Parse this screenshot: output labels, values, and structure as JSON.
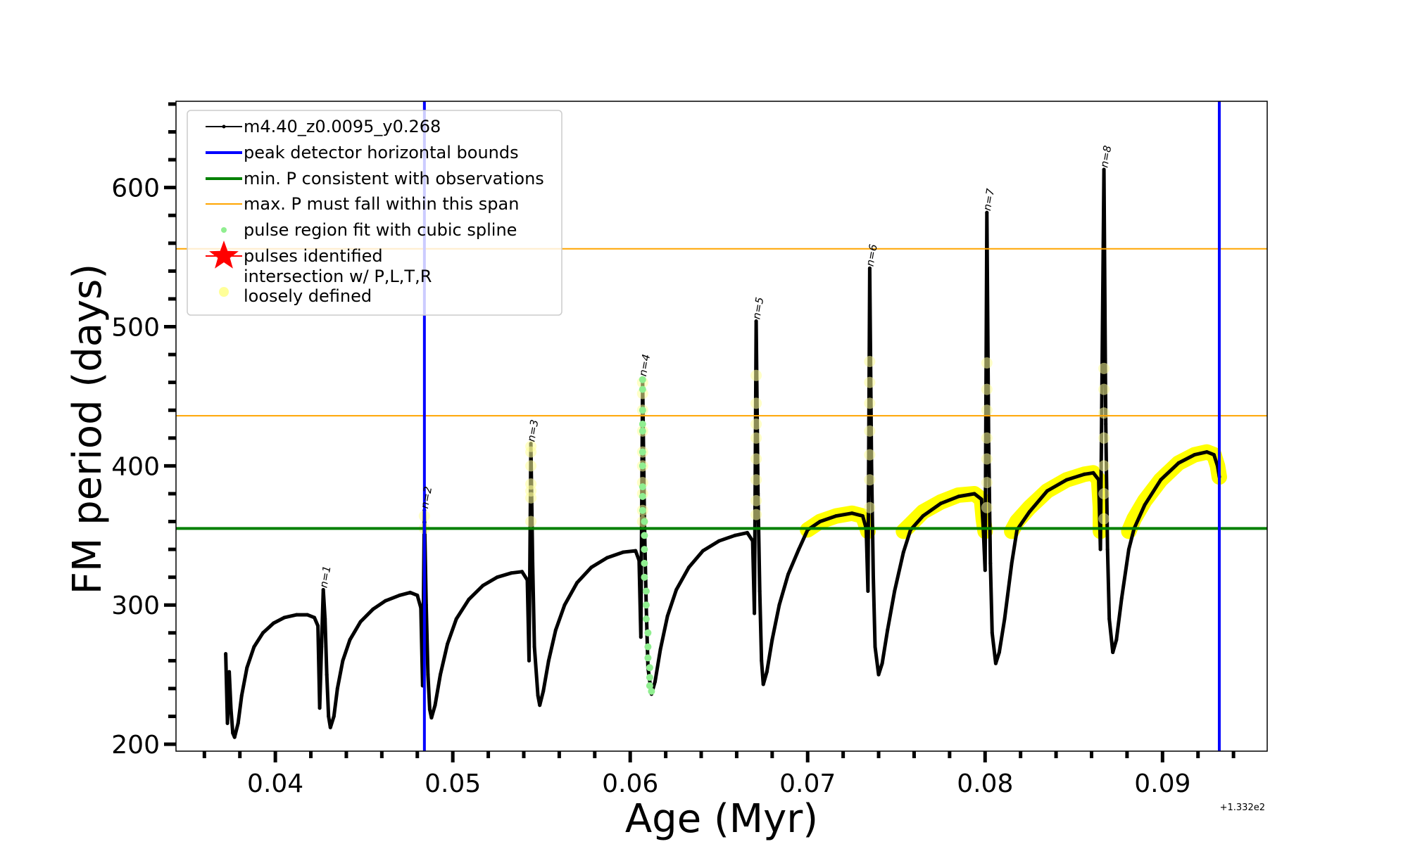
{
  "chart_data": {
    "type": "line",
    "xlabel": "Age (Myr)",
    "ylabel": "FM period (days)",
    "x_offset_label": "+1.332e2",
    "xlim": [
      0.0344,
      0.0959
    ],
    "ylim": [
      195,
      662
    ],
    "x_ticks": [
      0.04,
      0.05,
      0.06,
      0.07,
      0.08,
      0.09
    ],
    "x_tick_labels": [
      "0.04",
      "0.05",
      "0.06",
      "0.07",
      "0.08",
      "0.09"
    ],
    "x_minor_step": 0.002,
    "y_ticks": [
      200,
      300,
      400,
      500,
      600
    ],
    "y_tick_labels": [
      "200",
      "300",
      "400",
      "500",
      "600"
    ],
    "y_minor_step": 20,
    "legend_position": "upper-left",
    "legend": [
      {
        "label": "m4.40_z0.0095_y0.268",
        "marker": "line-dot",
        "color": "#000000"
      },
      {
        "label": "peak detector horizontal bounds",
        "marker": "thick-line",
        "color": "#0000ff"
      },
      {
        "label": "min. P consistent with observations",
        "marker": "thick-line",
        "color": "#008000"
      },
      {
        "label": "max. P must fall within this span",
        "marker": "thin-line",
        "color": "#ffa500"
      },
      {
        "label": "pulse region fit with cubic spline",
        "marker": "dot",
        "color": "#90ee90"
      },
      {
        "label": "pulses identified",
        "marker": "star",
        "color": "#ff0000"
      },
      {
        "label_lines": [
          "intersection w/ P,L,T,R",
          "loosely defined"
        ],
        "marker": "dot",
        "color": "#ffff99"
      }
    ],
    "vertical_lines": [
      {
        "name": "peak-detector-left-bound",
        "x": 0.0484,
        "color": "#0000ff"
      },
      {
        "name": "peak-detector-right-bound",
        "x": 0.0932,
        "color": "#0000ff"
      }
    ],
    "horizontal_lines": [
      {
        "name": "min-period-line",
        "y": 355,
        "color": "#008000"
      },
      {
        "name": "max-period-lower-line",
        "y": 436,
        "color": "#ffa500"
      },
      {
        "name": "max-period-upper-line",
        "y": 556,
        "color": "#ffa500"
      }
    ],
    "series": [
      {
        "name": "m4.40_z0.0095_y0.268",
        "color": "#000000",
        "points": [
          [
            0.0372,
            265
          ],
          [
            0.0373,
            215
          ],
          [
            0.0374,
            252
          ],
          [
            0.0375,
            225
          ],
          [
            0.0376,
            208
          ],
          [
            0.0377,
            205
          ],
          [
            0.0379,
            215
          ],
          [
            0.0381,
            235
          ],
          [
            0.0384,
            255
          ],
          [
            0.0388,
            270
          ],
          [
            0.0393,
            280
          ],
          [
            0.0399,
            287
          ],
          [
            0.0405,
            291
          ],
          [
            0.0412,
            293
          ],
          [
            0.0418,
            293
          ],
          [
            0.0422,
            291
          ],
          [
            0.0424,
            285
          ],
          [
            0.0425,
            226
          ],
          [
            0.0426,
            270
          ],
          [
            0.0427,
            311
          ],
          [
            0.0428,
            290
          ],
          [
            0.0429,
            250
          ],
          [
            0.043,
            220
          ],
          [
            0.0431,
            212
          ],
          [
            0.0433,
            220
          ],
          [
            0.0435,
            240
          ],
          [
            0.0438,
            260
          ],
          [
            0.0442,
            275
          ],
          [
            0.0448,
            288
          ],
          [
            0.0455,
            297
          ],
          [
            0.0462,
            303
          ],
          [
            0.047,
            307
          ],
          [
            0.0476,
            309
          ],
          [
            0.048,
            307
          ],
          [
            0.0482,
            298
          ],
          [
            0.0483,
            242
          ],
          [
            0.0484,
            368
          ],
          [
            0.0485,
            300
          ],
          [
            0.0486,
            250
          ],
          [
            0.0487,
            225
          ],
          [
            0.0488,
            219
          ],
          [
            0.049,
            228
          ],
          [
            0.0493,
            250
          ],
          [
            0.0497,
            272
          ],
          [
            0.0502,
            290
          ],
          [
            0.0509,
            304
          ],
          [
            0.0517,
            314
          ],
          [
            0.0525,
            320
          ],
          [
            0.0533,
            323
          ],
          [
            0.0539,
            324
          ],
          [
            0.0542,
            318
          ],
          [
            0.0543,
            260
          ],
          [
            0.0544,
            416
          ],
          [
            0.0545,
            330
          ],
          [
            0.0546,
            270
          ],
          [
            0.0548,
            235
          ],
          [
            0.0549,
            228
          ],
          [
            0.0551,
            238
          ],
          [
            0.0554,
            260
          ],
          [
            0.0558,
            282
          ],
          [
            0.0563,
            300
          ],
          [
            0.057,
            316
          ],
          [
            0.0578,
            327
          ],
          [
            0.0587,
            334
          ],
          [
            0.0596,
            338
          ],
          [
            0.0603,
            339
          ],
          [
            0.0605,
            332
          ],
          [
            0.0606,
            277
          ],
          [
            0.0607,
            463
          ],
          [
            0.0608,
            360
          ],
          [
            0.0609,
            300
          ],
          [
            0.061,
            255
          ],
          [
            0.0612,
            236
          ],
          [
            0.0614,
            245
          ],
          [
            0.0617,
            268
          ],
          [
            0.0621,
            292
          ],
          [
            0.0626,
            311
          ],
          [
            0.0633,
            327
          ],
          [
            0.0641,
            339
          ],
          [
            0.065,
            346
          ],
          [
            0.0659,
            350
          ],
          [
            0.0666,
            352
          ],
          [
            0.0669,
            346
          ],
          [
            0.067,
            294
          ],
          [
            0.0671,
            504
          ],
          [
            0.0672,
            380
          ],
          [
            0.0673,
            310
          ],
          [
            0.0674,
            260
          ],
          [
            0.0675,
            243
          ],
          [
            0.0677,
            252
          ],
          [
            0.068,
            275
          ],
          [
            0.0684,
            300
          ],
          [
            0.0689,
            322
          ],
          [
            0.0695,
            340
          ],
          [
            0.07,
            354
          ],
          [
            0.0707,
            360
          ],
          [
            0.0716,
            364
          ],
          [
            0.0725,
            366
          ],
          [
            0.0731,
            364
          ],
          [
            0.0733,
            355
          ],
          [
            0.0734,
            310
          ],
          [
            0.0735,
            542
          ],
          [
            0.0736,
            400
          ],
          [
            0.0737,
            320
          ],
          [
            0.0738,
            270
          ],
          [
            0.074,
            250
          ],
          [
            0.0742,
            258
          ],
          [
            0.0745,
            282
          ],
          [
            0.0749,
            310
          ],
          [
            0.0754,
            338
          ],
          [
            0.0758,
            354
          ],
          [
            0.0765,
            364
          ],
          [
            0.0775,
            373
          ],
          [
            0.0785,
            378
          ],
          [
            0.0794,
            380
          ],
          [
            0.0798,
            376
          ],
          [
            0.0799,
            355
          ],
          [
            0.08,
            325
          ],
          [
            0.0801,
            582
          ],
          [
            0.0802,
            420
          ],
          [
            0.0803,
            330
          ],
          [
            0.0804,
            280
          ],
          [
            0.0806,
            258
          ],
          [
            0.0808,
            266
          ],
          [
            0.0811,
            290
          ],
          [
            0.0815,
            330
          ],
          [
            0.0818,
            354
          ],
          [
            0.0825,
            367
          ],
          [
            0.0835,
            382
          ],
          [
            0.0846,
            390
          ],
          [
            0.0856,
            394
          ],
          [
            0.0861,
            395
          ],
          [
            0.0864,
            390
          ],
          [
            0.0865,
            340
          ],
          [
            0.0867,
            613
          ],
          [
            0.0868,
            430
          ],
          [
            0.0869,
            340
          ],
          [
            0.087,
            290
          ],
          [
            0.0872,
            266
          ],
          [
            0.0874,
            275
          ],
          [
            0.0877,
            305
          ],
          [
            0.0881,
            340
          ],
          [
            0.0884,
            355
          ],
          [
            0.089,
            372
          ],
          [
            0.0899,
            390
          ],
          [
            0.0909,
            402
          ],
          [
            0.0918,
            408
          ],
          [
            0.0925,
            410
          ],
          [
            0.0929,
            408
          ],
          [
            0.0931,
            400
          ],
          [
            0.0932,
            392
          ]
        ]
      }
    ],
    "spline_points": {
      "color": "#90ee90",
      "points": [
        [
          0.0607,
          462
        ],
        [
          0.0607,
          455
        ],
        [
          0.0607,
          440
        ],
        [
          0.0607,
          430
        ],
        [
          0.0607,
          425
        ],
        [
          0.0607,
          410
        ],
        [
          0.0607,
          400
        ],
        [
          0.0607,
          385
        ],
        [
          0.0607,
          378
        ],
        [
          0.0607,
          368
        ],
        [
          0.0608,
          360
        ],
        [
          0.0608,
          350
        ],
        [
          0.0608,
          340
        ],
        [
          0.0608,
          330
        ],
        [
          0.0608,
          320
        ],
        [
          0.0609,
          310
        ],
        [
          0.0609,
          300
        ],
        [
          0.0609,
          290
        ],
        [
          0.061,
          280
        ],
        [
          0.061,
          270
        ],
        [
          0.061,
          262
        ],
        [
          0.0611,
          255
        ],
        [
          0.0611,
          248
        ],
        [
          0.0611,
          242
        ],
        [
          0.0612,
          238
        ]
      ]
    },
    "intersection_points": {
      "color": "#ffff99",
      "points": [
        [
          0.0484,
          364
        ],
        [
          0.0484,
          355
        ],
        [
          0.0544,
          414
        ],
        [
          0.0544,
          410
        ],
        [
          0.0544,
          400
        ],
        [
          0.0544,
          387
        ],
        [
          0.0544,
          382
        ],
        [
          0.0544,
          377
        ],
        [
          0.0544,
          360
        ],
        [
          0.0607,
          460
        ],
        [
          0.0607,
          452
        ],
        [
          0.0607,
          440
        ],
        [
          0.0607,
          425
        ],
        [
          0.0607,
          410
        ],
        [
          0.0607,
          400
        ],
        [
          0.0607,
          388
        ],
        [
          0.0607,
          380
        ],
        [
          0.0607,
          368
        ],
        [
          0.0607,
          360
        ],
        [
          0.0671,
          465
        ],
        [
          0.0671,
          445
        ],
        [
          0.0671,
          430
        ],
        [
          0.0671,
          420
        ],
        [
          0.0671,
          405
        ],
        [
          0.0671,
          390
        ],
        [
          0.0671,
          375
        ],
        [
          0.0671,
          365
        ],
        [
          0.0735,
          475
        ],
        [
          0.0735,
          460
        ],
        [
          0.0735,
          445
        ],
        [
          0.0735,
          425
        ],
        [
          0.0735,
          408
        ],
        [
          0.0735,
          390
        ],
        [
          0.0735,
          370
        ],
        [
          0.0801,
          474
        ],
        [
          0.0801,
          455
        ],
        [
          0.0801,
          440
        ],
        [
          0.0801,
          420
        ],
        [
          0.0801,
          405
        ],
        [
          0.0801,
          388
        ],
        [
          0.0801,
          370
        ],
        [
          0.0867,
          470
        ],
        [
          0.0867,
          455
        ],
        [
          0.0867,
          438
        ],
        [
          0.0867,
          420
        ],
        [
          0.0867,
          400
        ],
        [
          0.0867,
          380
        ],
        [
          0.0867,
          362
        ]
      ]
    },
    "yellow_arcs": {
      "color": "#ffff00",
      "segments": [
        [
          [
            0.07,
            354
          ],
          [
            0.0707,
            360
          ],
          [
            0.0716,
            364
          ],
          [
            0.0725,
            366
          ],
          [
            0.0731,
            364
          ],
          [
            0.0733,
            357
          ],
          [
            0.0734,
            353
          ]
        ],
        [
          [
            0.0754,
            353
          ],
          [
            0.0758,
            358
          ],
          [
            0.0765,
            367
          ],
          [
            0.0775,
            374
          ],
          [
            0.0785,
            379
          ],
          [
            0.0794,
            380
          ],
          [
            0.0798,
            376
          ],
          [
            0.0799,
            362
          ],
          [
            0.08,
            353
          ]
        ],
        [
          [
            0.0815,
            353
          ],
          [
            0.0818,
            360
          ],
          [
            0.0825,
            370
          ],
          [
            0.0835,
            382
          ],
          [
            0.0846,
            390
          ],
          [
            0.0856,
            394
          ],
          [
            0.0861,
            395
          ],
          [
            0.0864,
            390
          ],
          [
            0.0865,
            370
          ],
          [
            0.0865,
            353
          ]
        ],
        [
          [
            0.0881,
            353
          ],
          [
            0.0884,
            362
          ],
          [
            0.089,
            375
          ],
          [
            0.0899,
            390
          ],
          [
            0.0909,
            402
          ],
          [
            0.0918,
            408
          ],
          [
            0.0925,
            410
          ],
          [
            0.0929,
            408
          ],
          [
            0.0931,
            400
          ],
          [
            0.0932,
            392
          ]
        ]
      ]
    },
    "annotations": [
      {
        "text": "n=1",
        "x": 0.0427,
        "y": 311
      },
      {
        "text": "n=2",
        "x": 0.0484,
        "y": 368
      },
      {
        "text": "n=3",
        "x": 0.0544,
        "y": 416
      },
      {
        "text": "n=4",
        "x": 0.0607,
        "y": 463
      },
      {
        "text": "n=5",
        "x": 0.0671,
        "y": 504
      },
      {
        "text": "n=6",
        "x": 0.0735,
        "y": 542
      },
      {
        "text": "n=7",
        "x": 0.0801,
        "y": 582
      },
      {
        "text": "n=8",
        "x": 0.0867,
        "y": 613
      }
    ]
  }
}
